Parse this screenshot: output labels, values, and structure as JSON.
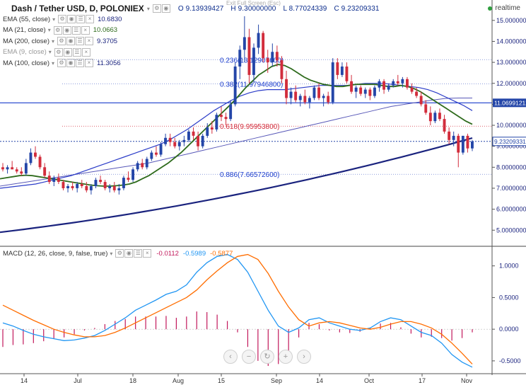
{
  "header": {
    "title": "Dash / Tether USD, D, POLONIEX",
    "open": "O 9.13939427",
    "high": "H 9.30000000",
    "low": "L 8.77024339",
    "close": "C 9.23209331",
    "realtime": "realtime",
    "exit_fullscreen": "Exit Full Screen (Esc)"
  },
  "indicators": [
    {
      "label": "EMA (55, close)",
      "value": "10.6830",
      "value_color": "#1a237e"
    },
    {
      "label": "MA (21, close)",
      "value": "10.0663",
      "value_color": "#2e6b1c"
    },
    {
      "label": "MA (200, close)",
      "value": "9.3705",
      "value_color": "#1a237e"
    },
    {
      "label": "EMA (9, close)",
      "value": "",
      "value_color": "#999999"
    },
    {
      "label": "MA (100, close)",
      "value": "11.3056",
      "value_color": "#1a237e"
    }
  ],
  "macd": {
    "label": "MACD (12, 26, close, 9, false, true)",
    "hist": "-0.0112",
    "macd": "-0.5989",
    "signal": "-0.5877"
  },
  "colors": {
    "up": "#2446a8",
    "down": "#d22d3c",
    "ma21": "#2e6b1c",
    "ema55": "#2b3cc8",
    "ma200": "#1a237e",
    "ma100": "#5858b8",
    "macd_line": "#2196f3",
    "signal_line": "#ff6d00",
    "hist": "#c2185b",
    "fib": "#1a3ccd"
  },
  "nav_buttons": [
    "chevron-left-icon",
    "minus-icon",
    "reset-icon",
    "plus-icon",
    "chevron-right-icon"
  ],
  "chart_data": {
    "type": "candlestick",
    "x_ticks": [
      "14",
      "Jul",
      "18",
      "Aug",
      "15",
      "Sep",
      "14",
      "Oct",
      "17",
      "Nov"
    ],
    "price_axis_ticks": [
      15.0,
      14.0,
      13.0,
      12.0,
      11.0,
      10.0,
      9.0,
      8.0,
      7.0,
      6.0,
      5.0
    ],
    "price_axis_labels": [
      "15.00000000",
      "14.00000000",
      "13.00000000",
      "12.00000000",
      "11.00000000",
      "10.00000000",
      "9.00000000",
      "8.00000000",
      "7.00000000",
      "6.00000000",
      "5.00000000"
    ],
    "price_ylim": [
      4.3,
      15.5
    ],
    "last_price_label": "9.23209331",
    "level_label": "11.06991212",
    "level_value": 11.07,
    "fibonacci": [
      {
        "ratio": "0.236",
        "label": "0.236(13.12907600)",
        "value": 13.129076
      },
      {
        "ratio": "0.382",
        "label": "0.382(11.97946800)",
        "value": 11.979468
      },
      {
        "ratio": "0.618",
        "label": "0.618(9.95953800)",
        "value": 9.959538
      },
      {
        "ratio": "0.886",
        "label": "0.886(7.66572600)",
        "value": 7.665726
      }
    ],
    "macd_axis_ticks": [
      1.0,
      0.5,
      0.0,
      -0.5
    ],
    "macd_axis_labels": [
      "1.0000",
      "0.5000",
      "0.0000",
      "-0.5000"
    ],
    "macd_ylim": [
      -0.68,
      1.22
    ],
    "candles": [
      [
        8.0,
        8.2,
        7.8,
        7.9
      ],
      [
        7.9,
        8.1,
        7.7,
        8.0
      ],
      [
        8.0,
        8.3,
        7.9,
        7.9
      ],
      [
        7.9,
        8.0,
        7.7,
        7.8
      ],
      [
        7.8,
        8.0,
        7.6,
        7.7
      ],
      [
        7.7,
        8.4,
        7.6,
        8.2
      ],
      [
        8.2,
        8.9,
        8.1,
        8.7
      ],
      [
        8.7,
        9.0,
        8.4,
        8.5
      ],
      [
        8.5,
        8.6,
        7.9,
        8.0
      ],
      [
        8.0,
        8.2,
        7.5,
        7.6
      ],
      [
        7.6,
        7.8,
        7.2,
        7.3
      ],
      [
        7.3,
        7.6,
        7.1,
        7.5
      ],
      [
        7.5,
        7.7,
        7.2,
        7.3
      ],
      [
        7.3,
        7.4,
        6.9,
        7.0
      ],
      [
        7.0,
        7.2,
        6.8,
        7.1
      ],
      [
        7.1,
        7.3,
        6.9,
        7.0
      ],
      [
        7.0,
        7.3,
        6.8,
        7.2
      ],
      [
        7.2,
        7.4,
        7.0,
        7.1
      ],
      [
        7.1,
        7.3,
        6.8,
        6.9
      ],
      [
        6.9,
        7.2,
        6.7,
        7.1
      ],
      [
        7.1,
        7.5,
        7.0,
        7.4
      ],
      [
        7.4,
        7.6,
        7.2,
        7.3
      ],
      [
        7.3,
        7.4,
        6.9,
        7.0
      ],
      [
        7.0,
        7.2,
        6.8,
        7.1
      ],
      [
        7.1,
        7.3,
        6.8,
        6.9
      ],
      [
        6.9,
        7.2,
        6.7,
        7.0
      ],
      [
        7.0,
        7.6,
        6.9,
        7.5
      ],
      [
        7.5,
        7.8,
        7.3,
        7.4
      ],
      [
        7.4,
        8.0,
        7.3,
        7.9
      ],
      [
        7.9,
        8.3,
        7.8,
        8.2
      ],
      [
        8.2,
        8.4,
        7.9,
        8.0
      ],
      [
        8.0,
        8.5,
        7.9,
        8.4
      ],
      [
        8.4,
        8.8,
        8.3,
        8.7
      ],
      [
        8.7,
        9.0,
        8.5,
        8.6
      ],
      [
        8.6,
        9.2,
        8.5,
        9.1
      ],
      [
        9.1,
        9.6,
        9.0,
        9.4
      ],
      [
        9.4,
        9.6,
        9.0,
        9.2
      ],
      [
        9.2,
        9.4,
        8.9,
        9.0
      ],
      [
        9.0,
        9.3,
        8.8,
        9.2
      ],
      [
        9.2,
        9.5,
        9.0,
        9.3
      ],
      [
        9.3,
        9.8,
        9.2,
        9.7
      ],
      [
        9.7,
        9.9,
        9.3,
        9.5
      ],
      [
        9.5,
        9.7,
        8.8,
        9.0
      ],
      [
        9.0,
        9.6,
        8.9,
        9.5
      ],
      [
        9.5,
        10.1,
        9.4,
        9.9
      ],
      [
        9.9,
        10.2,
        9.6,
        9.8
      ],
      [
        9.8,
        10.6,
        9.7,
        10.5
      ],
      [
        10.5,
        10.9,
        10.2,
        10.4
      ],
      [
        10.4,
        10.6,
        10.0,
        10.3
      ],
      [
        10.3,
        11.2,
        10.2,
        11.0
      ],
      [
        11.0,
        13.0,
        10.9,
        12.8
      ],
      [
        12.8,
        13.8,
        12.2,
        13.6
      ],
      [
        13.6,
        15.2,
        13.0,
        14.2
      ],
      [
        14.2,
        14.6,
        12.0,
        12.4
      ],
      [
        12.4,
        13.9,
        12.0,
        13.7
      ],
      [
        13.7,
        14.8,
        13.4,
        14.4
      ],
      [
        14.4,
        14.5,
        13.0,
        13.2
      ],
      [
        13.2,
        13.6,
        12.5,
        13.0
      ],
      [
        13.0,
        13.9,
        12.8,
        13.5
      ],
      [
        13.5,
        13.8,
        12.8,
        13.1
      ],
      [
        13.1,
        13.3,
        12.0,
        12.2
      ],
      [
        12.2,
        12.6,
        11.0,
        11.3
      ],
      [
        11.3,
        11.8,
        11.0,
        11.6
      ],
      [
        11.6,
        11.9,
        11.1,
        11.2
      ],
      [
        11.2,
        11.5,
        10.9,
        11.4
      ],
      [
        11.4,
        11.7,
        11.0,
        11.1
      ],
      [
        11.1,
        11.4,
        10.8,
        11.3
      ],
      [
        11.3,
        11.9,
        11.2,
        11.8
      ],
      [
        11.8,
        12.0,
        11.2,
        11.3
      ],
      [
        11.3,
        11.5,
        10.9,
        11.4
      ],
      [
        11.4,
        11.6,
        11.0,
        11.1
      ],
      [
        11.1,
        13.2,
        11.0,
        13.0
      ],
      [
        13.0,
        13.2,
        12.2,
        12.4
      ],
      [
        12.4,
        13.0,
        12.3,
        12.8
      ],
      [
        12.8,
        13.0,
        12.0,
        12.1
      ],
      [
        12.1,
        12.4,
        11.5,
        11.6
      ],
      [
        11.6,
        11.9,
        11.3,
        11.8
      ],
      [
        11.8,
        11.9,
        11.4,
        11.5
      ],
      [
        11.5,
        11.8,
        11.3,
        11.7
      ],
      [
        11.7,
        11.8,
        11.2,
        11.4
      ],
      [
        11.4,
        11.9,
        11.3,
        11.8
      ],
      [
        11.8,
        12.2,
        11.6,
        12.1
      ],
      [
        12.1,
        12.2,
        11.5,
        11.7
      ],
      [
        11.7,
        12.0,
        11.6,
        11.9
      ],
      [
        11.9,
        12.2,
        11.8,
        12.1
      ],
      [
        12.1,
        12.4,
        11.9,
        12.0
      ],
      [
        12.0,
        12.3,
        11.8,
        12.2
      ],
      [
        12.2,
        12.3,
        11.7,
        11.8
      ],
      [
        11.8,
        12.0,
        11.5,
        11.6
      ],
      [
        11.6,
        11.8,
        11.3,
        11.4
      ],
      [
        11.4,
        11.6,
        10.9,
        11.0
      ],
      [
        11.0,
        11.2,
        10.5,
        10.6
      ],
      [
        10.6,
        10.9,
        10.0,
        10.2
      ],
      [
        10.2,
        10.7,
        10.1,
        10.6
      ],
      [
        10.6,
        10.8,
        10.2,
        10.3
      ],
      [
        10.3,
        10.5,
        9.6,
        9.7
      ],
      [
        9.7,
        9.9,
        9.1,
        9.3
      ],
      [
        9.3,
        9.7,
        9.0,
        9.5
      ],
      [
        9.5,
        9.6,
        8.0,
        8.7
      ],
      [
        8.7,
        9.5,
        8.6,
        9.5
      ],
      [
        9.5,
        9.6,
        8.7,
        8.9
      ],
      [
        8.9,
        9.3,
        8.77,
        9.23
      ]
    ],
    "ma21": [
      7.45,
      7.5,
      7.55,
      7.6,
      7.62,
      7.6,
      7.55,
      7.5,
      7.45,
      7.4,
      7.35,
      7.3,
      7.25,
      7.2,
      7.15,
      7.12,
      7.1,
      7.1,
      7.12,
      7.15,
      7.2,
      7.3,
      7.45,
      7.6,
      7.8,
      8.0,
      8.2,
      8.45,
      8.7,
      9.0,
      9.3,
      9.6,
      9.9,
      10.2,
      10.5,
      10.8,
      11.1,
      11.45,
      11.8,
      12.1,
      12.4,
      12.6,
      12.8,
      12.9,
      12.85,
      12.7,
      12.5,
      12.3,
      12.15,
      12.05,
      11.95,
      11.9,
      11.85,
      11.85,
      11.9,
      11.95,
      11.95,
      11.95,
      11.95,
      11.9,
      11.85,
      11.85,
      11.9,
      11.85,
      11.75,
      11.6,
      11.4,
      11.2,
      11.0,
      10.8,
      10.6,
      10.4,
      10.2,
      10.05
    ],
    "ma21_start": 28,
    "ema55": [
      7.0,
      7.05,
      7.1,
      7.15,
      7.2,
      7.3,
      7.4,
      7.5,
      7.6,
      7.75,
      7.9,
      8.05,
      8.2,
      8.35,
      8.5,
      8.65,
      8.8,
      8.95,
      9.1,
      9.3,
      9.55,
      9.8,
      10.1,
      10.4,
      10.7,
      10.95,
      11.2,
      11.4,
      11.55,
      11.65,
      11.7,
      11.7,
      11.7,
      11.75,
      11.8,
      11.85,
      11.9,
      11.9,
      11.9,
      11.9,
      11.95,
      12.0,
      12.0,
      12.0,
      11.95,
      11.9,
      11.85,
      11.8,
      11.7,
      11.55,
      11.35,
      11.15,
      10.95,
      10.7
    ],
    "ema55_start": 48,
    "ma200_start": 4.9,
    "ma200_end": 9.37,
    "ma100": [
      7.1,
      7.2,
      7.3,
      7.4,
      7.5,
      7.6,
      7.7,
      7.8,
      7.9,
      8.0,
      8.1,
      8.2,
      8.35,
      8.5,
      8.65,
      8.8,
      8.95,
      9.1,
      9.25,
      9.4,
      9.55,
      9.7,
      9.85,
      10.0,
      10.15,
      10.3,
      10.45,
      10.6,
      10.75,
      10.9,
      11.0,
      11.1,
      11.2,
      11.28,
      11.3,
      11.3
    ],
    "macd_line": [
      0.1,
      0.05,
      -0.02,
      -0.08,
      -0.12,
      -0.15,
      -0.18,
      -0.17,
      -0.14,
      -0.1,
      -0.02,
      0.08,
      0.18,
      0.3,
      0.38,
      0.46,
      0.55,
      0.6,
      0.7,
      0.9,
      1.05,
      1.15,
      1.18,
      1.1,
      0.9,
      0.6,
      0.3,
      0.05,
      -0.05,
      0.02,
      0.15,
      0.18,
      0.1,
      0.05,
      0.0,
      -0.02,
      0.02,
      0.12,
      0.18,
      0.15,
      0.05,
      -0.05,
      -0.1,
      -0.22,
      -0.4,
      -0.52,
      -0.6
    ],
    "signal_line": [
      0.38,
      0.3,
      0.22,
      0.14,
      0.07,
      0.0,
      -0.05,
      -0.09,
      -0.12,
      -0.12,
      -0.1,
      -0.05,
      0.02,
      0.1,
      0.18,
      0.26,
      0.34,
      0.42,
      0.5,
      0.62,
      0.78,
      0.92,
      1.05,
      1.15,
      1.18,
      1.1,
      0.88,
      0.6,
      0.35,
      0.15,
      0.05,
      0.1,
      0.12,
      0.1,
      0.06,
      0.02,
      0.0,
      0.03,
      0.08,
      0.12,
      0.12,
      0.08,
      0.02,
      -0.08,
      -0.22,
      -0.38,
      -0.55
    ],
    "histogram": [
      -0.28,
      -0.25,
      -0.24,
      -0.22,
      -0.19,
      -0.15,
      -0.13,
      -0.08,
      -0.02,
      0.02,
      0.08,
      0.13,
      0.16,
      0.2,
      0.2,
      0.2,
      0.21,
      0.18,
      0.2,
      0.28,
      0.27,
      0.23,
      0.13,
      -0.05,
      -0.28,
      -0.5,
      -0.58,
      -0.55,
      -0.4,
      -0.13,
      0.1,
      0.08,
      -0.02,
      -0.05,
      -0.06,
      -0.04,
      0.02,
      0.09,
      0.1,
      0.03,
      -0.07,
      -0.13,
      -0.12,
      -0.14,
      -0.18,
      -0.14,
      -0.05
    ]
  }
}
